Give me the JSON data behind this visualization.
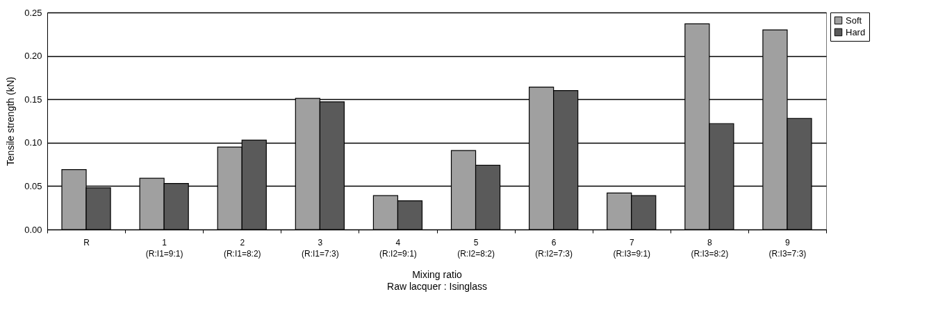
{
  "chart_data": {
    "type": "bar",
    "xlabel": "Mixing ratio\nRaw lacquer : Isinglass",
    "ylabel": "Tensile strength (kN)",
    "categories": [
      "R",
      "1\n(R:I1=9:1)",
      "2\n(R:I1=8:2)",
      "3\n(R:I1=7:3)",
      "4\n(R:I2=9:1)",
      "5\n(R:I2=8:2)",
      "6\n(R:I2=7:3)",
      "7\n(R:I3=9:1)",
      "8\n(R:I3=8:2)",
      "9\n(R:I3=7:3)"
    ],
    "series": [
      {
        "name": "Soft",
        "color": "#a0a0a0",
        "values": [
          0.069,
          0.059,
          0.095,
          0.151,
          0.039,
          0.091,
          0.164,
          0.042,
          0.237,
          0.23
        ]
      },
      {
        "name": "Hard",
        "color": "#5a5a5a",
        "values": [
          0.048,
          0.053,
          0.103,
          0.147,
          0.033,
          0.074,
          0.16,
          0.039,
          0.122,
          0.128
        ]
      }
    ],
    "ylim": [
      0,
      0.25
    ],
    "yticks": [
      {
        "value": 0,
        "label": "0.00"
      },
      0.05,
      {
        "value": 0.1,
        "label": "0.10"
      },
      0.15,
      {
        "value": 0.2,
        "label": "0.20"
      },
      0.25
    ],
    "grid": "y",
    "legend": "right"
  }
}
